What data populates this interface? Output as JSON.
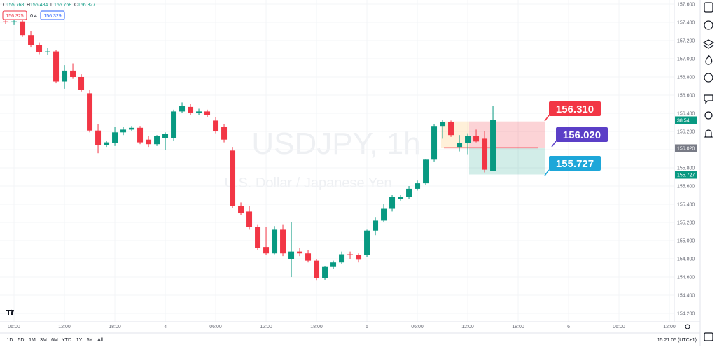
{
  "chart_data": {
    "type": "candlestick",
    "watermark": "USDJPY, 1h",
    "watermark_sub": "U.S. Dollar / Japanese Yen",
    "up_color": "#089981",
    "down_color": "#f23645",
    "xlim": [
      4.33,
      84.58
    ],
    "ylim": [
      154.108,
      157.646
    ],
    "xticks": [
      {
        "value": 6,
        "label": "06:00"
      },
      {
        "value": 12,
        "label": "12:00"
      },
      {
        "value": 18,
        "label": "18:00"
      },
      {
        "value": 24,
        "label": "4"
      },
      {
        "value": 30,
        "label": "06:00"
      },
      {
        "value": 36,
        "label": "12:00"
      },
      {
        "value": 42,
        "label": "18:00"
      },
      {
        "value": 48,
        "label": "5"
      },
      {
        "value": 54,
        "label": "06:00"
      },
      {
        "value": 60,
        "label": "12:00"
      },
      {
        "value": 66,
        "label": "18:00"
      },
      {
        "value": 72,
        "label": "6"
      },
      {
        "value": 78,
        "label": "06:00"
      },
      {
        "value": 84,
        "label": "12:00"
      }
    ],
    "yticks": [
      {
        "value": 157.6,
        "label": "157.600"
      },
      {
        "value": 157.4,
        "label": "157.400"
      },
      {
        "value": 157.2,
        "label": "157.200"
      },
      {
        "value": 157.0,
        "label": "157.000"
      },
      {
        "value": 156.8,
        "label": "156.800"
      },
      {
        "value": 156.6,
        "label": "156.600"
      },
      {
        "value": 156.4,
        "label": "156.400"
      },
      {
        "value": 156.2,
        "label": "156.200"
      },
      {
        "value": 156.0,
        "label": "156.000"
      },
      {
        "value": 155.8,
        "label": "155.800"
      },
      {
        "value": 155.6,
        "label": "155.600"
      },
      {
        "value": 155.4,
        "label": "155.400"
      },
      {
        "value": 155.2,
        "label": "155.200"
      },
      {
        "value": 155.0,
        "label": "155.000"
      },
      {
        "value": 154.8,
        "label": "154.800"
      },
      {
        "value": 154.6,
        "label": "154.600"
      },
      {
        "value": 154.4,
        "label": "154.400"
      },
      {
        "value": 154.2,
        "label": "154.200"
      }
    ],
    "x": [
      5,
      6,
      7,
      8,
      9,
      10,
      11,
      12,
      13,
      14,
      15,
      16,
      17,
      18,
      19,
      20,
      21,
      22,
      23,
      24,
      25,
      26,
      27,
      28,
      29,
      30,
      31,
      32,
      33,
      34,
      35,
      36,
      37,
      38,
      39,
      40,
      41,
      42,
      43,
      44,
      45,
      46,
      47,
      48,
      49,
      50,
      51,
      52,
      53,
      54,
      55,
      56,
      57,
      58,
      59,
      60,
      61,
      62,
      63
    ],
    "open": [
      157.41,
      157.4,
      157.41,
      157.26,
      157.15,
      157.07,
      157.08,
      156.75,
      156.87,
      156.8,
      156.62,
      156.21,
      156.05,
      156.07,
      156.19,
      156.22,
      156.24,
      156.11,
      156.06,
      156.13,
      156.13,
      156.42,
      156.47,
      156.4,
      156.42,
      156.32,
      156.25,
      155.99,
      155.38,
      155.32,
      155.15,
      154.93,
      154.86,
      155.12,
      154.8,
      154.88,
      154.86,
      154.78,
      154.59,
      154.71,
      154.76,
      154.85,
      154.84,
      154.84,
      155.11,
      155.22,
      155.35,
      155.46,
      155.48,
      155.57,
      155.63,
      155.89,
      156.26,
      156.3,
      156.03,
      156.07,
      156.15,
      156.12,
      155.768
    ],
    "high": [
      157.44,
      157.44,
      157.44,
      157.3,
      157.18,
      157.12,
      157.1,
      156.93,
      156.95,
      156.83,
      156.66,
      156.28,
      156.1,
      156.25,
      156.25,
      156.26,
      156.26,
      156.15,
      156.16,
      156.19,
      156.44,
      156.52,
      156.5,
      156.45,
      156.44,
      156.36,
      156.28,
      156.03,
      155.42,
      155.38,
      155.18,
      155.15,
      155.16,
      155.18,
      155.2,
      154.92,
      154.9,
      154.8,
      154.72,
      154.78,
      154.88,
      154.88,
      154.86,
      155.12,
      155.26,
      155.4,
      155.5,
      155.5,
      155.6,
      155.66,
      155.9,
      156.28,
      156.33,
      156.32,
      156.16,
      156.18,
      156.22,
      156.2,
      156.484
    ],
    "low": [
      157.38,
      157.37,
      157.24,
      157.13,
      157.05,
      157.04,
      156.73,
      156.67,
      156.78,
      156.64,
      156.19,
      155.96,
      156.03,
      156.04,
      156.16,
      156.2,
      156.06,
      156.03,
      156.04,
      156.0,
      156.1,
      156.4,
      156.38,
      156.38,
      156.36,
      156.18,
      156.08,
      155.36,
      155.28,
      155.12,
      154.9,
      154.84,
      154.85,
      154.83,
      154.6,
      154.83,
      154.76,
      154.56,
      154.57,
      154.69,
      154.74,
      154.8,
      154.76,
      154.82,
      155.06,
      155.2,
      155.32,
      155.44,
      155.46,
      155.55,
      155.61,
      155.87,
      156.12,
      156.14,
      155.98,
      155.95,
      156.08,
      155.75,
      155.768
    ],
    "close": [
      157.4,
      157.41,
      157.26,
      157.15,
      157.07,
      157.08,
      156.75,
      156.87,
      156.8,
      156.66,
      156.21,
      156.05,
      156.08,
      156.19,
      156.22,
      156.24,
      156.08,
      156.06,
      156.15,
      156.17,
      156.42,
      156.48,
      156.4,
      156.42,
      156.38,
      156.2,
      156.11,
      155.38,
      155.3,
      155.15,
      154.92,
      154.86,
      155.12,
      154.86,
      154.88,
      154.86,
      154.78,
      154.59,
      154.71,
      154.76,
      154.85,
      154.84,
      154.79,
      155.11,
      155.22,
      155.35,
      155.48,
      155.48,
      155.57,
      155.63,
      155.89,
      156.26,
      156.3,
      156.16,
      156.07,
      156.15,
      156.09,
      155.78,
      156.327
    ],
    "position": {
      "stop": {
        "value": 156.31,
        "label": "156.310"
      },
      "entry": {
        "value": 156.02,
        "label": "156.020"
      },
      "target": {
        "value": 155.727,
        "label": "155.727"
      }
    }
  },
  "ui": {
    "ohlc": [
      {
        "key": "O",
        "value": "155.768"
      },
      {
        "key": "H",
        "value": "156.484"
      },
      {
        "key": "L",
        "value": "155.768"
      },
      {
        "key": "C",
        "value": "156.327"
      }
    ],
    "sell": "156.325",
    "spread": "0.4",
    "buy": "156.329",
    "countdown": "38:54",
    "entry_tag": "156.020",
    "target_tag": "155.727",
    "ranges": [
      "1D",
      "5D",
      "1M",
      "3M",
      "6M",
      "YTD",
      "1Y",
      "5Y",
      "All"
    ],
    "clock": "15:21:05 (UTC+1)"
  }
}
